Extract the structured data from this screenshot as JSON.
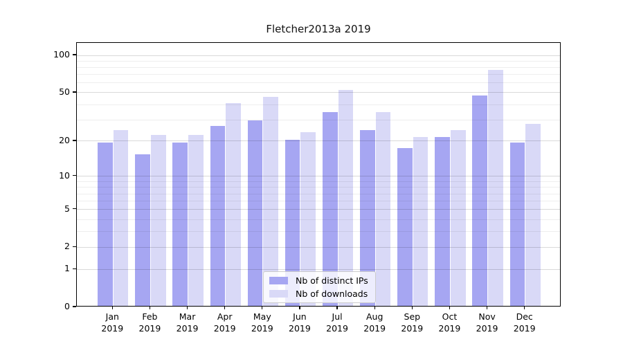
{
  "title": "Fletcher2013a 2019",
  "chart_data": {
    "type": "bar",
    "title": "Fletcher2013a 2019",
    "categories": [
      "Jan",
      "Feb",
      "Mar",
      "Apr",
      "May",
      "Jun",
      "Jul",
      "Aug",
      "Sep",
      "Oct",
      "Nov",
      "Dec"
    ],
    "x_tick_year": "2019",
    "series": [
      {
        "name": "Nb of distinct IPs",
        "color": "#a6a6f2",
        "values": [
          19,
          15,
          19,
          26,
          29,
          20,
          34,
          24,
          17,
          21,
          46,
          19
        ]
      },
      {
        "name": "Nb of downloads",
        "color": "#d9d9f7",
        "values": [
          24,
          22,
          22,
          40,
          45,
          23,
          51,
          34,
          21,
          24,
          75,
          27
        ]
      }
    ],
    "xlabel": "",
    "ylabel": "",
    "yscale": "log1p",
    "ylim": [
      0,
      126
    ],
    "yticks": [
      0,
      1,
      2,
      5,
      10,
      20,
      50,
      100
    ],
    "ytick_labels": [
      "0",
      "1",
      "2",
      "5",
      "10",
      "20",
      "50",
      "100"
    ],
    "yticks_minor": [
      3,
      4,
      6,
      7,
      8,
      9,
      30,
      40,
      60,
      70,
      80,
      90
    ],
    "grid": "horizontal",
    "legend": {
      "position": "lower-center",
      "labels": [
        "Nb of distinct IPs",
        "Nb of downloads"
      ]
    }
  }
}
